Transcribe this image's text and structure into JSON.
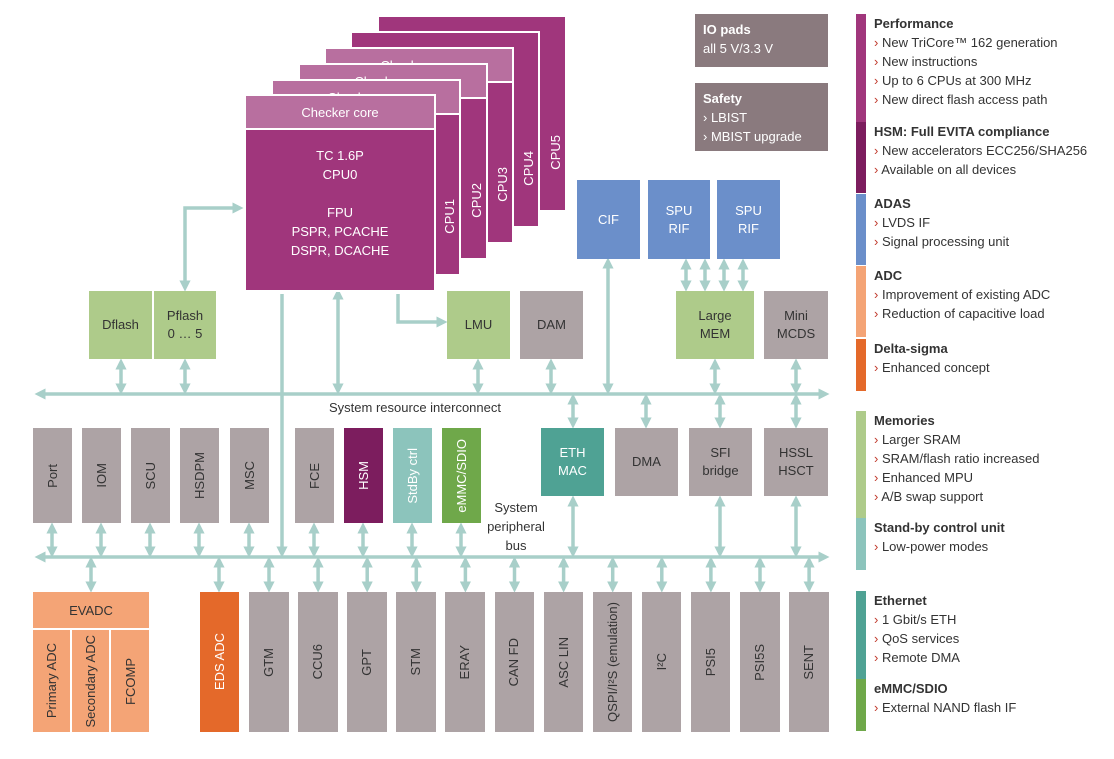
{
  "colors": {
    "cpu": "#a0367c",
    "checker": "#b86f9f",
    "hsm": "#7c1d5e",
    "adas": "#6b8fca",
    "adc": "#f4a476",
    "deltasigma": "#e4692a",
    "memory": "#aecb8a",
    "standby": "#8cc4bc",
    "ethernet": "#4fa294",
    "emmc": "#6fa84a",
    "periph": "#ada3a5",
    "info": "#8a7a7e",
    "arrow": "#a8cfc9"
  },
  "cpus": {
    "checker_label": "Checker core",
    "cpu0_text": "TC 1.6P\nCPU0\n\nFPU\nPSPR, PCACHE\nDSPR, DCACHE",
    "others": [
      "CPU1",
      "CPU2",
      "CPU3",
      "CPU4",
      "CPU5"
    ]
  },
  "info_boxes": [
    {
      "title": "IO pads",
      "lines": [
        "all 5 V/3.3 V"
      ]
    },
    {
      "title": "Safety",
      "lines": [
        "› LBIST",
        "› MBIST upgrade"
      ]
    }
  ],
  "blocks": [
    {
      "id": "cif",
      "label": "CIF",
      "color": "adas"
    },
    {
      "id": "spu1",
      "label": "SPU\nRIF",
      "color": "adas"
    },
    {
      "id": "spu2",
      "label": "SPU\nRIF",
      "color": "adas"
    },
    {
      "id": "dflash",
      "label": "Dflash",
      "color": "memory"
    },
    {
      "id": "pflash",
      "label": "Pflash\n0 … 5",
      "color": "memory"
    },
    {
      "id": "lmu",
      "label": "LMU",
      "color": "memory"
    },
    {
      "id": "dam",
      "label": "DAM",
      "color": "periph"
    },
    {
      "id": "largemem",
      "label": "Large\nMEM",
      "color": "memory"
    },
    {
      "id": "minimcds",
      "label": "Mini\nMCDS",
      "color": "periph"
    },
    {
      "id": "port",
      "label": "Port",
      "color": "periph"
    },
    {
      "id": "iom",
      "label": "IOM",
      "color": "periph"
    },
    {
      "id": "scu",
      "label": "SCU",
      "color": "periph"
    },
    {
      "id": "hsdpm",
      "label": "HSDPM",
      "color": "periph"
    },
    {
      "id": "msc",
      "label": "MSC",
      "color": "periph"
    },
    {
      "id": "fce",
      "label": "FCE",
      "color": "periph"
    },
    {
      "id": "hsm",
      "label": "HSM",
      "color": "hsm"
    },
    {
      "id": "stdby",
      "label": "StdBy ctrl",
      "color": "standby"
    },
    {
      "id": "emmc",
      "label": "eMMC/SDIO",
      "color": "emmc"
    },
    {
      "id": "eth",
      "label": "ETH\nMAC",
      "color": "ethernet"
    },
    {
      "id": "dma",
      "label": "DMA",
      "color": "periph"
    },
    {
      "id": "sfi",
      "label": "SFI\nbridge",
      "color": "periph"
    },
    {
      "id": "hssl",
      "label": "HSSL\nHSCT",
      "color": "periph"
    },
    {
      "id": "edsadc",
      "label": "EDS ADC",
      "color": "deltasigma"
    },
    {
      "id": "gtm",
      "label": "GTM",
      "color": "periph"
    },
    {
      "id": "ccu6",
      "label": "CCU6",
      "color": "periph"
    },
    {
      "id": "gpt",
      "label": "GPT",
      "color": "periph"
    },
    {
      "id": "stm",
      "label": "STM",
      "color": "periph"
    },
    {
      "id": "eray",
      "label": "ERAY",
      "color": "periph"
    },
    {
      "id": "canfd",
      "label": "CAN FD",
      "color": "periph"
    },
    {
      "id": "asclin",
      "label": "ASC LIN",
      "color": "periph"
    },
    {
      "id": "qspi",
      "label": "QSPI/I²S (emulation)",
      "color": "periph"
    },
    {
      "id": "i2c",
      "label": "I²C",
      "color": "periph"
    },
    {
      "id": "psi5",
      "label": "PSI5",
      "color": "periph"
    },
    {
      "id": "psi5s",
      "label": "PSI5S",
      "color": "periph"
    },
    {
      "id": "sent",
      "label": "SENT",
      "color": "periph"
    }
  ],
  "evadc": {
    "title": "EVADC",
    "subs": [
      "Primary ADC",
      "Secondary ADC",
      "FCOMP"
    ]
  },
  "bus_labels": {
    "sri": "System resource interconnect",
    "spb": "System\nperipheral\nbus"
  },
  "legend": [
    {
      "title": "Performance",
      "color": "cpu",
      "items": [
        "New TriCore™ 162 generation",
        "New instructions",
        "Up to 6 CPUs at 300 MHz",
        "New direct flash access path"
      ]
    },
    {
      "title": "HSM: Full EVITA compliance",
      "color": "hsm",
      "items": [
        "New accelerators ECC256/SHA256",
        "Available on all devices"
      ]
    },
    {
      "title": "ADAS",
      "color": "adas",
      "items": [
        "LVDS IF",
        "Signal processing unit"
      ]
    },
    {
      "title": "ADC",
      "color": "adc",
      "items": [
        "Improvement of existing ADC",
        "Reduction of capacitive load"
      ]
    },
    {
      "title": "Delta-sigma",
      "color": "deltasigma",
      "items": [
        "Enhanced concept"
      ]
    },
    {
      "title": "Memories",
      "color": "memory",
      "items": [
        "Larger SRAM",
        "SRAM/flash ratio increased",
        "Enhanced MPU",
        "A/B swap support"
      ]
    },
    {
      "title": "Stand-by control unit",
      "color": "standby",
      "items": [
        "Low-power modes"
      ]
    },
    {
      "title": "Ethernet",
      "color": "ethernet",
      "items": [
        "1 Gbit/s ETH",
        "QoS services",
        "Remote DMA"
      ]
    },
    {
      "title": "eMMC/SDIO",
      "color": "emmc",
      "items": [
        "External NAND flash IF"
      ]
    }
  ]
}
